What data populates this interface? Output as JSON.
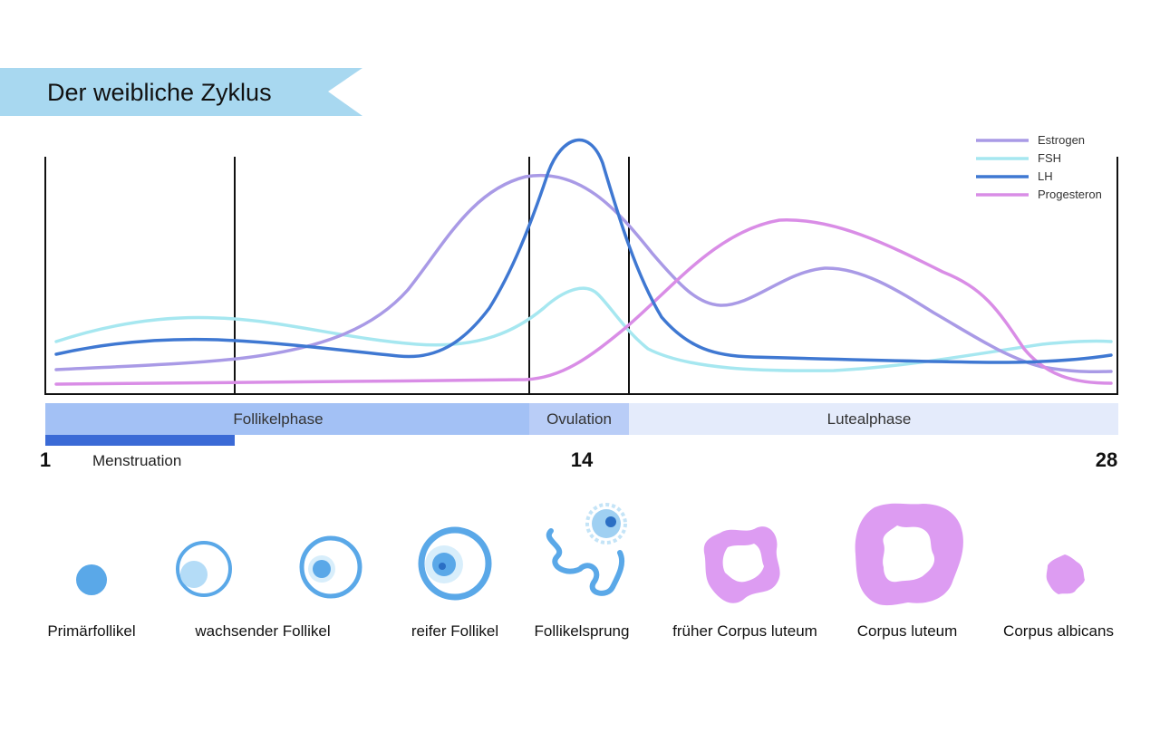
{
  "title": "Der weibliche Zyklus",
  "colors": {
    "banner": "#a8d8f0",
    "estrogen": "#a99ae6",
    "fsh": "#a6e7f0",
    "lh": "#3f78d2",
    "progesteron": "#d98de6",
    "follikelphase": "#a3c1f5",
    "ovulation": "#b9cdf7",
    "lutealphase": "#e4ebfb",
    "menstruation": "#3a6ad6",
    "follicle": "#5aa8e8",
    "corpus": "#dd9cf2"
  },
  "legend": [
    {
      "key": "estrogen",
      "label": "Estrogen"
    },
    {
      "key": "fsh",
      "label": "FSH"
    },
    {
      "key": "lh",
      "label": "LH"
    },
    {
      "key": "progesteron",
      "label": "Progesteron"
    }
  ],
  "phases": {
    "follikelphase": "Follikelphase",
    "ovulation": "Ovulation",
    "lutealphase": "Lutealphase",
    "menstruation": "Menstruation"
  },
  "days": {
    "start": "1",
    "mid": "14",
    "end": "28"
  },
  "stages": [
    "Primärfollikel",
    "wachsender Follikel",
    "reifer Follikel",
    "Follikelsprung",
    "früher Corpus luteum",
    "Corpus luteum",
    "Corpus albicans"
  ]
}
